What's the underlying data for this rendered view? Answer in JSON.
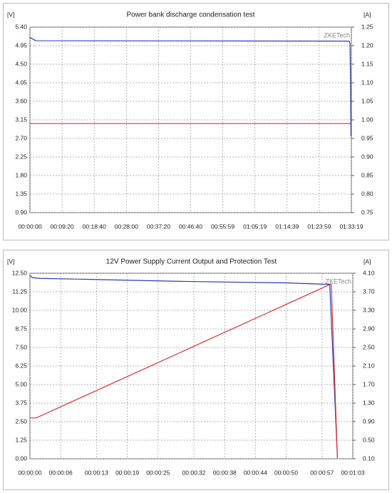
{
  "chart_data": [
    {
      "type": "line",
      "title": "Power bank discharge condensation test",
      "y_label": "[V]",
      "y2_label": "[A]",
      "watermark": "ZKETech",
      "grid": true,
      "xlim": [
        0,
        5599
      ],
      "xticks": [
        {
          "value": 0,
          "label": "00:00:00"
        },
        {
          "value": 560,
          "label": "00:09:20"
        },
        {
          "value": 1120,
          "label": "00:18:40"
        },
        {
          "value": 1680,
          "label": "00:28:00"
        },
        {
          "value": 2240,
          "label": "00:37:20"
        },
        {
          "value": 2800,
          "label": "00:46:40"
        },
        {
          "value": 3359,
          "label": "00:55:59"
        },
        {
          "value": 3919,
          "label": "01:05:19"
        },
        {
          "value": 4479,
          "label": "01:14:39"
        },
        {
          "value": 5039,
          "label": "01:23:59"
        },
        {
          "value": 5599,
          "label": "01:33:19"
        }
      ],
      "ylim": [
        0.9,
        5.4
      ],
      "yticks": [
        {
          "value": 5.4,
          "label": "5.40"
        },
        4.95,
        {
          "value": 4.5,
          "label": "4.50"
        },
        4.05,
        {
          "value": 3.6,
          "label": "3.60"
        },
        3.15,
        {
          "value": 2.7,
          "label": "2.70"
        },
        2.25,
        {
          "value": 1.8,
          "label": "1.80"
        },
        1.35,
        {
          "value": 0.9,
          "label": "0.90"
        }
      ],
      "y2lim": [
        0.75,
        1.25
      ],
      "y2ticks": [
        1.25,
        {
          "value": 1.2,
          "label": "1.20"
        },
        1.15,
        {
          "value": 1.1,
          "label": "1.10"
        },
        1.05,
        {
          "value": 1,
          "label": "1.00"
        },
        0.95,
        {
          "value": 0.9,
          "label": "0.90"
        },
        0.85,
        {
          "value": 0.8,
          "label": "0.80"
        },
        0.75
      ],
      "series": [
        {
          "color": "#2b3bb8",
          "x": [
            0,
            100,
            5560,
            5575,
            5585,
            5592
          ],
          "values": [
            5.15,
            5.07,
            5.06,
            5.0,
            4.0,
            2.75
          ]
        },
        {
          "color": "#e03030",
          "axis": "y2",
          "x": [
            0,
            5592
          ],
          "values": [
            0.99,
            0.99
          ]
        }
      ]
    },
    {
      "type": "line",
      "title": "12V Power Supply Current Output and Protection Test",
      "y_label": "[V]",
      "y2_label": "[A]",
      "watermark": "ZKETech",
      "grid": true,
      "xlim": [
        0,
        63
      ],
      "xticks": [
        {
          "value": 0,
          "label": "00:00:00"
        },
        {
          "value": 6,
          "label": "00:00:06"
        },
        {
          "value": 13,
          "label": "00:00:13"
        },
        {
          "value": 19,
          "label": "00:00:19"
        },
        {
          "value": 25,
          "label": "00:00:25"
        },
        {
          "value": 32,
          "label": "00:00:32"
        },
        {
          "value": 38,
          "label": "00:00:38"
        },
        {
          "value": 44,
          "label": "00:00:44"
        },
        {
          "value": 50,
          "label": "00:00:50"
        },
        {
          "value": 57,
          "label": "00:00:57"
        },
        {
          "value": 63,
          "label": "00:01:03"
        }
      ],
      "ylim": [
        0,
        12.5
      ],
      "yticks": [
        {
          "value": 12.5,
          "label": "12.50"
        },
        11.25,
        {
          "value": 10,
          "label": "10.00"
        },
        8.75,
        {
          "value": 7.5,
          "label": "7.50"
        },
        6.25,
        {
          "value": 5,
          "label": "5.00"
        },
        3.75,
        {
          "value": 2.5,
          "label": "2.50"
        },
        1.25,
        {
          "value": 0,
          "label": "0.00"
        }
      ],
      "y2lim": [
        0.1,
        4.1
      ],
      "y2ticks": [
        {
          "value": 4.1,
          "label": "4.10"
        },
        {
          "value": 3.7,
          "label": "3.70"
        },
        {
          "value": 3.3,
          "label": "3.30"
        },
        {
          "value": 2.9,
          "label": "2.90"
        },
        {
          "value": 2.5,
          "label": "2.50"
        },
        {
          "value": 2.1,
          "label": "2.10"
        },
        {
          "value": 1.7,
          "label": "1.70"
        },
        {
          "value": 1.3,
          "label": "1.30"
        },
        {
          "value": 0.9,
          "label": "0.90"
        },
        {
          "value": 0.5,
          "label": "0.50"
        },
        {
          "value": 0.1,
          "label": "0.10"
        }
      ],
      "series": [
        {
          "color": "#2b3bb8",
          "x": [
            0,
            0.5,
            2,
            10,
            30,
            50,
            58.5,
            60
          ],
          "values": [
            12.35,
            12.2,
            12.15,
            12.1,
            11.95,
            11.85,
            11.75,
            0.05
          ]
        },
        {
          "color": "#e03030",
          "axis": "y2",
          "x": [
            0,
            1.2,
            58.8,
            60
          ],
          "values": [
            0.98,
            0.98,
            3.87,
            0.12
          ]
        }
      ]
    }
  ]
}
